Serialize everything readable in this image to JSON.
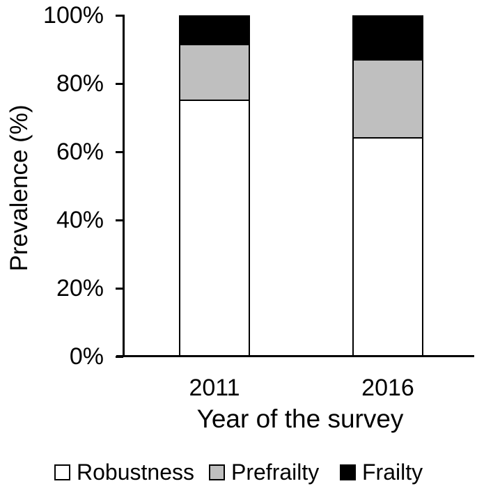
{
  "chart_data": {
    "type": "bar",
    "stacking": "percent",
    "title": "",
    "xlabel": "Year of the survey",
    "ylabel": "Prevalence (%)",
    "categories": [
      "2011",
      "2016"
    ],
    "series": [
      {
        "name": "Robustness",
        "color": "#FFFFFF",
        "values": [
          75.5,
          64.5
        ]
      },
      {
        "name": "Prefrailty",
        "color": "#BFBFBF",
        "values": [
          16.5,
          23.0
        ]
      },
      {
        "name": "Frailty",
        "color": "#000000",
        "values": [
          8.0,
          12.5
        ]
      }
    ],
    "ylim": [
      0,
      100
    ],
    "yticks": [
      "0%",
      "20%",
      "40%",
      "60%",
      "80%",
      "100%"
    ],
    "grid": false,
    "legend_position": "bottom",
    "bar_outline_color": "#000000",
    "axis_color": "#000000",
    "background_color": "#FFFFFF"
  }
}
